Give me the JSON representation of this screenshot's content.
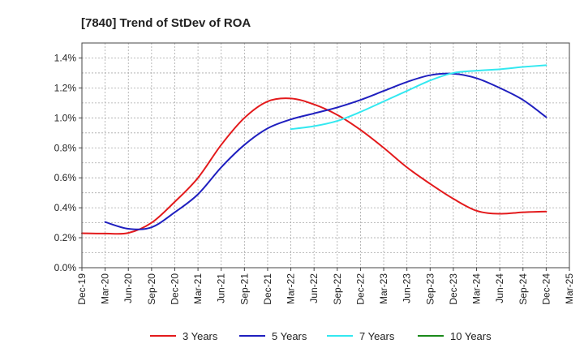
{
  "chart_data": {
    "type": "line",
    "title": "[7840]  Trend of StDev of ROA",
    "xlabel": "",
    "ylabel": "",
    "x": [
      "Dec-19",
      "Mar-20",
      "Jun-20",
      "Sep-20",
      "Dec-20",
      "Mar-21",
      "Jun-21",
      "Sep-21",
      "Dec-21",
      "Mar-22",
      "Jun-22",
      "Sep-22",
      "Dec-22",
      "Mar-23",
      "Jun-23",
      "Sep-23",
      "Dec-23",
      "Mar-24",
      "Jun-24",
      "Sep-24",
      "Dec-24",
      "Mar-25"
    ],
    "ylim": [
      0,
      1.5
    ],
    "yticks": [
      0,
      0.2,
      0.4,
      0.6,
      0.8,
      1.0,
      1.2,
      1.4
    ],
    "ytick_labels": [
      "0.0%",
      "0.2%",
      "0.4%",
      "0.6%",
      "0.8%",
      "1.0%",
      "1.2%",
      "1.4%"
    ],
    "grid": true,
    "legend_position": "bottom",
    "series": [
      {
        "name": "3 Years",
        "color": "#e31a1c",
        "values": [
          0.23,
          0.228,
          0.232,
          0.3,
          0.44,
          0.6,
          0.82,
          1.0,
          1.11,
          1.13,
          1.09,
          1.02,
          0.92,
          0.8,
          0.67,
          0.56,
          0.46,
          0.38,
          0.36,
          0.37,
          0.375,
          null
        ]
      },
      {
        "name": "5 Years",
        "color": "#1f1fbf",
        "values": [
          null,
          0.305,
          0.26,
          0.27,
          0.37,
          0.49,
          0.67,
          0.82,
          0.93,
          0.99,
          1.03,
          1.07,
          1.12,
          1.18,
          1.24,
          1.285,
          1.295,
          1.265,
          1.2,
          1.12,
          1.005,
          null
        ]
      },
      {
        "name": "7 Years",
        "color": "#33e8f0",
        "values": [
          null,
          null,
          null,
          null,
          null,
          null,
          null,
          null,
          null,
          0.925,
          0.945,
          0.98,
          1.04,
          1.11,
          1.18,
          1.25,
          1.3,
          1.315,
          1.325,
          1.34,
          1.352,
          null
        ]
      },
      {
        "name": "10 Years",
        "color": "#1a8a1a",
        "values": [
          null,
          null,
          null,
          null,
          null,
          null,
          null,
          null,
          null,
          null,
          null,
          null,
          null,
          null,
          null,
          null,
          null,
          null,
          null,
          null,
          null,
          null
        ]
      }
    ]
  }
}
